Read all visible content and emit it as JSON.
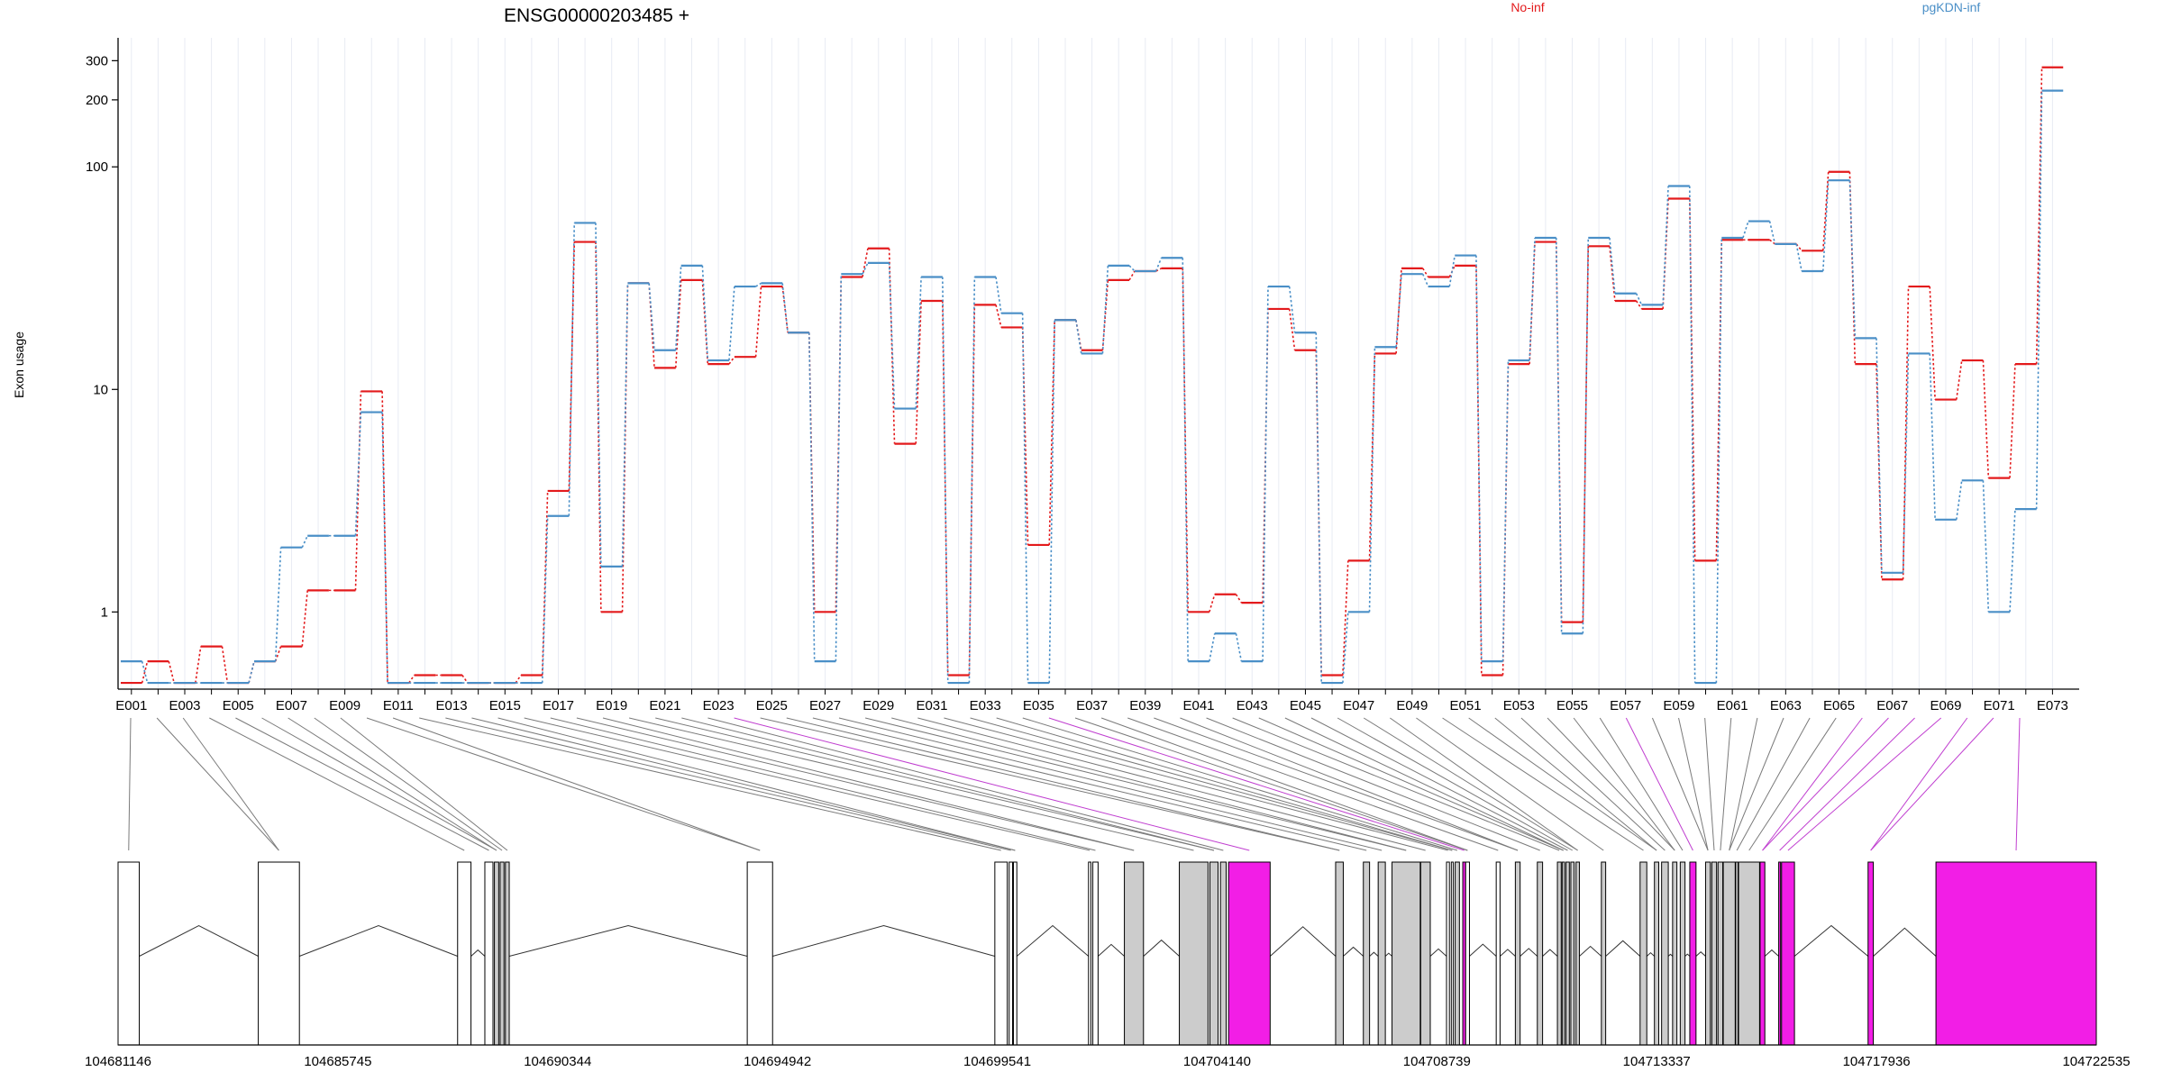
{
  "chart_data": {
    "type": "line",
    "title": "ENSG00000203485 +",
    "ylabel": "Exon usage",
    "xlabel": "",
    "yscale": "log",
    "ylim": [
      0.45,
      380
    ],
    "yticks": [
      1,
      10,
      100,
      200,
      300
    ],
    "grid": "vertical",
    "legend_placement": "top",
    "series": [
      {
        "name": "No-inf",
        "color": "#e31a1c",
        "values": [
          0.48,
          0.6,
          0.48,
          0.7,
          0.48,
          0.6,
          0.7,
          1.25,
          1.25,
          9.8,
          0.48,
          0.52,
          0.52,
          0.48,
          0.48,
          0.52,
          3.5,
          46,
          1,
          30,
          12.5,
          31,
          13,
          14,
          29,
          18,
          1,
          32,
          43,
          5.7,
          25,
          0.52,
          24,
          19,
          2,
          20.5,
          15,
          31,
          34,
          35,
          1,
          1.2,
          1.1,
          23,
          15,
          0.52,
          1.7,
          14.5,
          35,
          32,
          36,
          0.52,
          13,
          46,
          0.9,
          44,
          25,
          23,
          72,
          1.7,
          47,
          47,
          45,
          42,
          95,
          13,
          1.4,
          29,
          9,
          13.5,
          4,
          13,
          280
        ]
      },
      {
        "name": "pgKDN-inf",
        "color": "#4a8fc7",
        "values": [
          0.6,
          0.48,
          0.48,
          0.48,
          0.48,
          0.6,
          1.95,
          2.2,
          2.2,
          7.9,
          0.48,
          0.48,
          0.48,
          0.48,
          0.48,
          0.48,
          2.7,
          56,
          1.6,
          30,
          15,
          36,
          13.5,
          29,
          30,
          18,
          0.6,
          33,
          37,
          8.2,
          32,
          0.48,
          32,
          22,
          0.48,
          20.5,
          14.5,
          36,
          34,
          39,
          0.6,
          0.8,
          0.6,
          29,
          18,
          0.48,
          1,
          15.5,
          33,
          29,
          40,
          0.6,
          13.5,
          48,
          0.8,
          48,
          27,
          24,
          82,
          0.48,
          48,
          57,
          45,
          34,
          87,
          17,
          1.5,
          14.5,
          2.6,
          3.9,
          1,
          2.9,
          220
        ]
      }
    ],
    "x_tick_labels": [
      "E001",
      "E003",
      "E005",
      "E007",
      "E009",
      "E011",
      "E013",
      "E015",
      "E017",
      "E019",
      "E021",
      "E023",
      "E025",
      "E027",
      "E029",
      "E031",
      "E033",
      "E035",
      "E037",
      "E039",
      "E041",
      "E043",
      "E045",
      "E047",
      "E049",
      "E051",
      "E053",
      "E055",
      "E057",
      "E059",
      "E061",
      "E063",
      "E065",
      "E067",
      "E069",
      "E071",
      "E073"
    ],
    "genome_ticks": [
      "104681146",
      "104685745",
      "104690344",
      "104694942",
      "104699541",
      "104704140",
      "104708739",
      "104713337",
      "104717936",
      "104722535"
    ],
    "genome_range": [
      104681146,
      104722535
    ],
    "exon_colors": {
      "default": "#ffffff",
      "grey": "#cccccc",
      "highlight": "#f21ee6"
    },
    "exons": [
      [
        104681146,
        104681590,
        "default"
      ],
      [
        104684080,
        104684940,
        "default"
      ],
      [
        104688250,
        104688530,
        "default"
      ],
      [
        104688820,
        104688990,
        "default"
      ],
      [
        104689020,
        104689110,
        "grey"
      ],
      [
        104689140,
        104689220,
        "grey"
      ],
      [
        104689250,
        104689330,
        "grey"
      ],
      [
        104694310,
        104694840,
        "default"
      ],
      [
        104699490,
        104699750,
        "default"
      ],
      [
        104699790,
        104699860,
        "default"
      ],
      [
        104699880,
        104699950,
        "default"
      ],
      [
        104701450,
        104701500,
        "default"
      ],
      [
        104701540,
        104701650,
        "default"
      ],
      [
        104702200,
        104702600,
        "grey"
      ],
      [
        104703350,
        104703950,
        "grey"
      ],
      [
        104703990,
        104704160,
        "grey"
      ],
      [
        104704210,
        104704330,
        "grey"
      ],
      [
        104704380,
        104705250,
        "highlight"
      ],
      [
        104706620,
        104706780,
        "grey"
      ],
      [
        104707200,
        104707330,
        "grey"
      ],
      [
        104707510,
        104707660,
        "grey"
      ],
      [
        104707800,
        104708390,
        "grey"
      ],
      [
        104708400,
        104708600,
        "grey"
      ],
      [
        104708940,
        104709000,
        "default"
      ],
      [
        104709040,
        104709080,
        "default"
      ],
      [
        104709120,
        104709210,
        "grey"
      ],
      [
        104709280,
        104709340,
        "highlight"
      ],
      [
        104709340,
        104709420,
        "default"
      ],
      [
        104709980,
        104710060,
        "default"
      ],
      [
        104710380,
        104710480,
        "grey"
      ],
      [
        104710840,
        104710950,
        "grey"
      ],
      [
        104711260,
        104711340,
        "grey"
      ],
      [
        104711360,
        104711410,
        "grey"
      ],
      [
        104711440,
        104711510,
        "grey"
      ],
      [
        104711540,
        104711610,
        "grey"
      ],
      [
        104711650,
        104711720,
        "grey"
      ],
      [
        104712180,
        104712270,
        "grey"
      ],
      [
        104712990,
        104713130,
        "grey"
      ],
      [
        104713290,
        104713380,
        "grey"
      ],
      [
        104713440,
        104713580,
        "grey"
      ],
      [
        104713670,
        104713760,
        "grey"
      ],
      [
        104713830,
        104713930,
        "grey"
      ],
      [
        104714030,
        104714160,
        "highlight"
      ],
      [
        104714360,
        104714460,
        "grey"
      ],
      [
        104714490,
        104714590,
        "grey"
      ],
      [
        104714620,
        104714720,
        "grey"
      ],
      [
        104714730,
        104714980,
        "grey"
      ],
      [
        104714990,
        104715040,
        "grey"
      ],
      [
        104715050,
        104715490,
        "grey"
      ],
      [
        104715500,
        104715600,
        "highlight"
      ],
      [
        104715890,
        104715930,
        "highlight"
      ],
      [
        104715950,
        104716220,
        "highlight"
      ],
      [
        104717760,
        104717870,
        "highlight"
      ],
      [
        104719180,
        104722535,
        "highlight"
      ]
    ]
  }
}
